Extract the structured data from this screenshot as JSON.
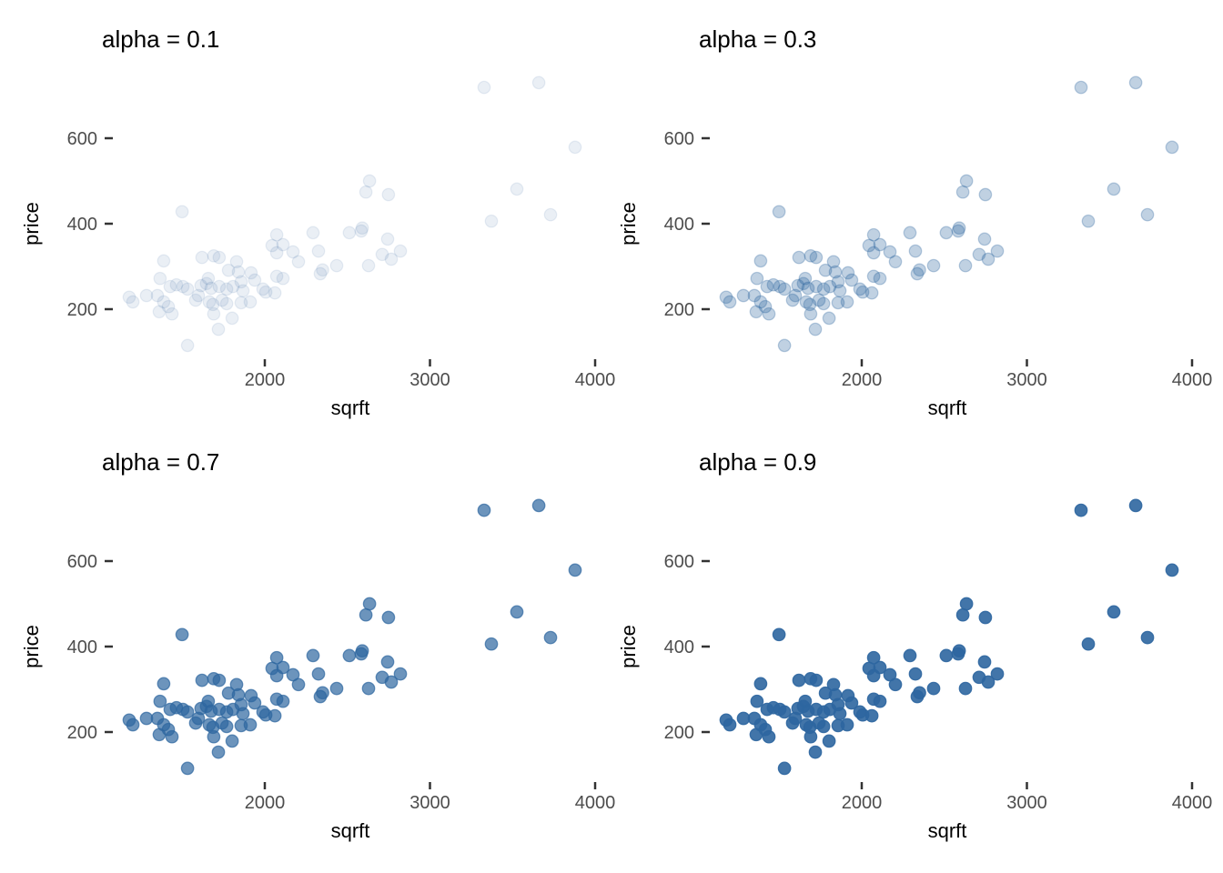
{
  "figure": {
    "background": "#FFFFFF",
    "point_color": "#2D66A0",
    "title_color": "#000000",
    "axis_title_color": "#000000",
    "tick_label_color": "#4D4D4D",
    "tick_mark_color": "#333333",
    "xlabel": "sqrft",
    "ylabel": "price",
    "x_tick_labels": [
      "2000",
      "3000",
      "4000"
    ],
    "y_tick_labels": [
      "600",
      "400",
      "200"
    ],
    "panels": [
      {
        "title": "alpha = 0.1",
        "alpha": 0.1
      },
      {
        "title": "alpha = 0.3",
        "alpha": 0.3
      },
      {
        "title": "alpha = 0.7",
        "alpha": 0.7
      },
      {
        "title": "alpha = 0.9",
        "alpha": 0.9
      }
    ]
  },
  "chart_data": {
    "type": "scatter",
    "facets": "four panels of identical data, varying point transparency",
    "facet_titles": [
      "alpha = 0.1",
      "alpha = 0.3",
      "alpha = 0.7",
      "alpha = 0.9"
    ],
    "alphas": [
      0.1,
      0.3,
      0.7,
      0.9
    ],
    "xlabel": "sqrft",
    "ylabel": "price",
    "x_tick_values": [
      2000,
      3000,
      4000
    ],
    "y_tick_values": [
      600,
      400,
      200
    ],
    "xlim": [
      1000,
      4180
    ],
    "ylim": [
      95,
      770
    ],
    "grid": false,
    "legend": false,
    "point_color": "#2D66A0",
    "points": [
      [
        3328,
        719
      ],
      [
        3659,
        730
      ],
      [
        3879,
        579
      ],
      [
        3526,
        481
      ],
      [
        3372,
        406
      ],
      [
        3730,
        421
      ],
      [
        2634,
        500
      ],
      [
        2612,
        474
      ],
      [
        2749,
        468
      ],
      [
        2590,
        390
      ],
      [
        1499,
        428
      ],
      [
        2512,
        379
      ],
      [
        2584,
        383
      ],
      [
        2744,
        364
      ],
      [
        2711,
        328
      ],
      [
        2821,
        336
      ],
      [
        2766,
        317
      ],
      [
        2628,
        302
      ],
      [
        2435,
        302
      ],
      [
        2292,
        379
      ],
      [
        2325,
        336
      ],
      [
        2336,
        283
      ],
      [
        2350,
        292
      ],
      [
        2072,
        374
      ],
      [
        2044,
        349
      ],
      [
        2110,
        351
      ],
      [
        2072,
        332
      ],
      [
        2171,
        334
      ],
      [
        2204,
        311
      ],
      [
        1388,
        313
      ],
      [
        1620,
        321
      ],
      [
        1691,
        325
      ],
      [
        1724,
        321
      ],
      [
        1780,
        291
      ],
      [
        1829,
        311
      ],
      [
        1840,
        287
      ],
      [
        1366,
        272
      ],
      [
        1658,
        272
      ],
      [
        1917,
        285
      ],
      [
        1939,
        268
      ],
      [
        2072,
        277
      ],
      [
        2110,
        272
      ],
      [
        1179,
        228
      ],
      [
        1201,
        217
      ],
      [
        1284,
        232
      ],
      [
        1350,
        232
      ],
      [
        1427,
        253
      ],
      [
        1465,
        257
      ],
      [
        1504,
        253
      ],
      [
        1532,
        247
      ],
      [
        1614,
        255
      ],
      [
        1647,
        260
      ],
      [
        1675,
        249
      ],
      [
        1724,
        253
      ],
      [
        1769,
        247
      ],
      [
        1807,
        253
      ],
      [
        1857,
        264
      ],
      [
        1868,
        243
      ],
      [
        1989,
        247
      ],
      [
        2006,
        240
      ],
      [
        2061,
        238
      ],
      [
        1388,
        217
      ],
      [
        1416,
        206
      ],
      [
        1581,
        221
      ],
      [
        1598,
        232
      ],
      [
        1664,
        217
      ],
      [
        1686,
        211
      ],
      [
        1741,
        221
      ],
      [
        1769,
        213
      ],
      [
        1857,
        215
      ],
      [
        1912,
        217
      ],
      [
        1361,
        194
      ],
      [
        1438,
        189
      ],
      [
        1691,
        189
      ],
      [
        1802,
        179
      ],
      [
        1719,
        153
      ],
      [
        1532,
        115
      ]
    ]
  }
}
